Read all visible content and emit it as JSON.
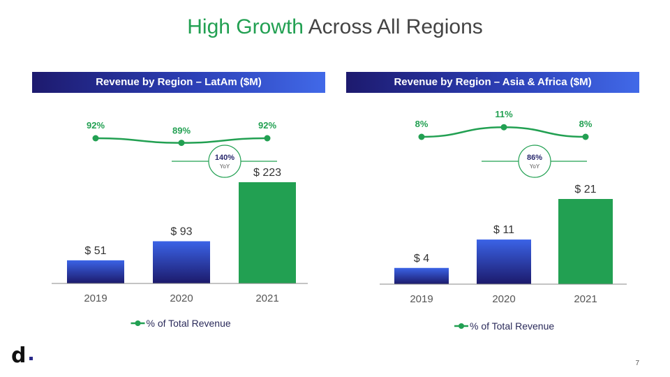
{
  "slide": {
    "title_highlight": "High Growth",
    "title_rest": " Across All Regions",
    "page_number": "7",
    "accent_color": "#22a052",
    "logo_text": "d"
  },
  "chart_data": [
    {
      "type": "bar",
      "title": "Revenue by Region – LatAm ($M)",
      "categories": [
        "2019",
        "2020",
        "2021"
      ],
      "series": [
        {
          "values": [
            51,
            93,
            223
          ],
          "labels": [
            "$ 51",
            "$ 93",
            "$ 223"
          ]
        },
        {
          "name": "% of Total Revenue",
          "type": "line",
          "values": [
            92,
            89,
            92
          ],
          "labels": [
            "92%",
            "89%",
            "92%"
          ]
        }
      ],
      "annotation": {
        "value": "140%",
        "label": "YoY"
      },
      "ylim": [
        0,
        223
      ]
    },
    {
      "type": "bar",
      "title": "Revenue by Region – Asia & Africa ($M)",
      "categories": [
        "2019",
        "2020",
        "2021"
      ],
      "series": [
        {
          "values": [
            4,
            11,
            21
          ],
          "labels": [
            "$ 4",
            "$ 11",
            "$ 21"
          ]
        },
        {
          "name": "% of Total Revenue",
          "type": "line",
          "values": [
            8,
            11,
            8
          ],
          "labels": [
            "8%",
            "11%",
            "8%"
          ]
        }
      ],
      "annotation": {
        "value": "86%",
        "label": "YoY"
      },
      "ylim": [
        0,
        21
      ]
    }
  ]
}
